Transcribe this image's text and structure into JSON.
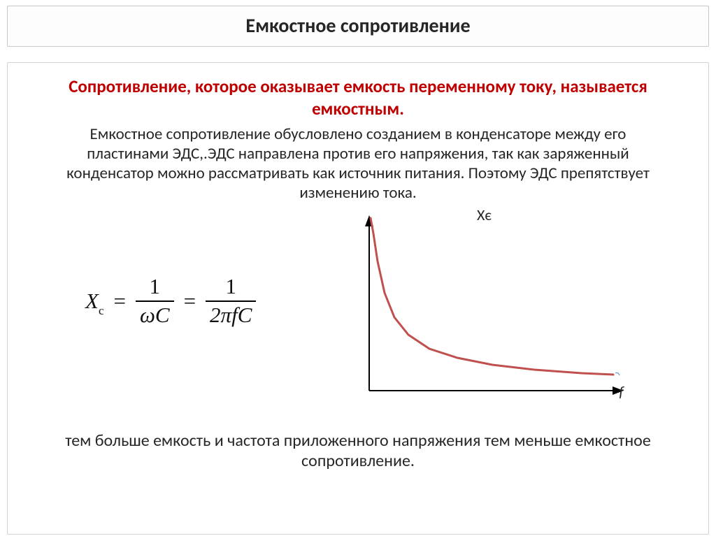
{
  "title": "Емкостное сопротивление",
  "lead": "Сопротивление, которое оказывает емкость переменному току, называется емкостным.",
  "body": "Емкостное сопротивление обусловлено созданием в конденсаторе между его пластинами ЭДС,.ЭДС направлена против его напряжения, так как заряженный конденсатор можно рассматривать как источник питания. Поэтому ЭДС препятствует изменению тока.",
  "formula": {
    "lhs_var": "X",
    "lhs_sub": "c",
    "eq": "=",
    "frac1_num": "1",
    "frac1_den_omega": "ω",
    "frac1_den_C": "C",
    "frac2_num": "1",
    "frac2_den": "2πfC"
  },
  "chart": {
    "type": "line",
    "y_axis_label": "Xє",
    "x_axis_label": "f",
    "axis_color": "#000000",
    "curve_color": "#c0504d",
    "curve_width": 3,
    "background": "#ffffff",
    "xlim": [
      0,
      400
    ],
    "ylim": [
      0,
      260
    ],
    "points": [
      [
        48,
        18
      ],
      [
        52,
        40
      ],
      [
        58,
        80
      ],
      [
        68,
        125
      ],
      [
        82,
        160
      ],
      [
        102,
        185
      ],
      [
        132,
        205
      ],
      [
        172,
        218
      ],
      [
        222,
        228
      ],
      [
        282,
        235
      ],
      [
        350,
        240
      ],
      [
        395,
        242
      ]
    ]
  },
  "bottom": "тем больше емкость и  частота приложенного напряжения тем меньше емкостное сопротивление."
}
